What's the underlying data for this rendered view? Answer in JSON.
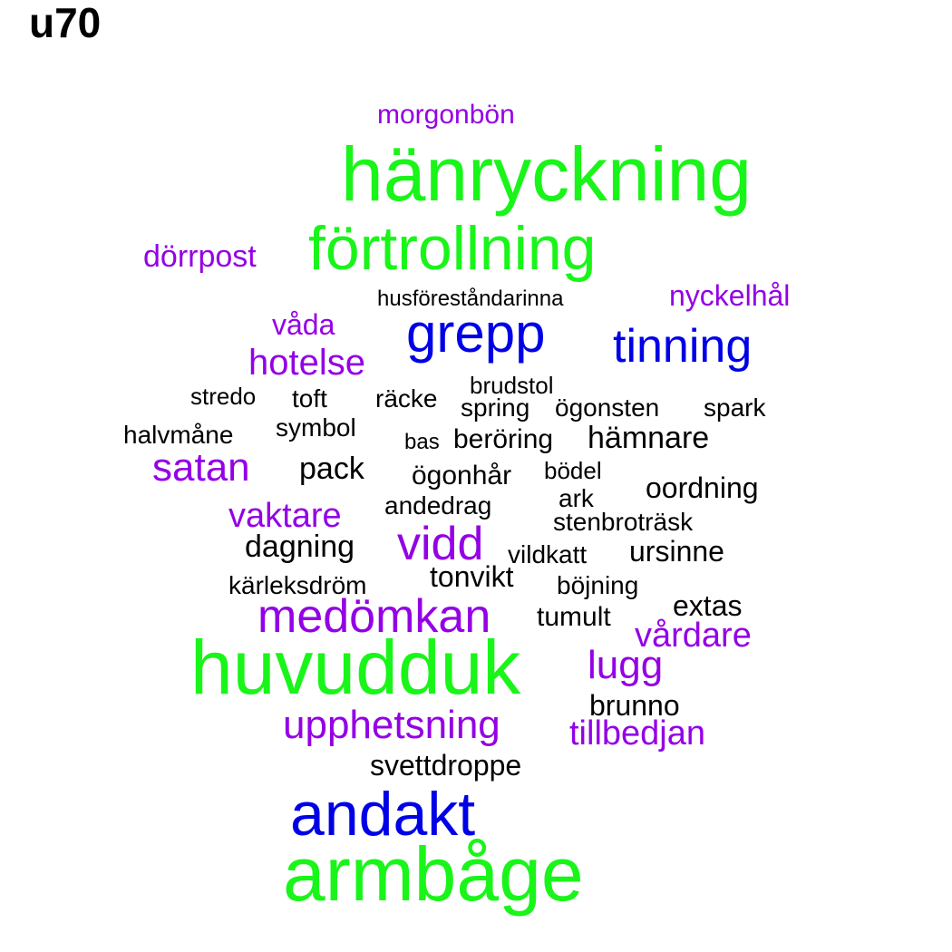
{
  "title": "u70",
  "colors": {
    "green": "#19f519",
    "blue": "#0000e6",
    "purple": "#9400e6",
    "black": "#000000"
  },
  "words": [
    {
      "text": "morgonbön",
      "color": "purple"
    },
    {
      "text": "hänryckning",
      "color": "green"
    },
    {
      "text": "förtrollning",
      "color": "green"
    },
    {
      "text": "dörrpost",
      "color": "purple"
    },
    {
      "text": "husföreståndarinna",
      "color": "black"
    },
    {
      "text": "nyckelhål",
      "color": "purple"
    },
    {
      "text": "grepp",
      "color": "blue"
    },
    {
      "text": "våda",
      "color": "purple"
    },
    {
      "text": "tinning",
      "color": "blue"
    },
    {
      "text": "hotelse",
      "color": "purple"
    },
    {
      "text": "brudstol",
      "color": "black"
    },
    {
      "text": "stredo",
      "color": "black"
    },
    {
      "text": "toft",
      "color": "black"
    },
    {
      "text": "räcke",
      "color": "black"
    },
    {
      "text": "spring",
      "color": "black"
    },
    {
      "text": "ögonsten",
      "color": "black"
    },
    {
      "text": "spark",
      "color": "black"
    },
    {
      "text": "halvmåne",
      "color": "black"
    },
    {
      "text": "symbol",
      "color": "black"
    },
    {
      "text": "bas",
      "color": "black"
    },
    {
      "text": "beröring",
      "color": "black"
    },
    {
      "text": "hämnare",
      "color": "black"
    },
    {
      "text": "satan",
      "color": "purple"
    },
    {
      "text": "pack",
      "color": "black"
    },
    {
      "text": "ögonhår",
      "color": "black"
    },
    {
      "text": "bödel",
      "color": "black"
    },
    {
      "text": "oordning",
      "color": "black"
    },
    {
      "text": "ark",
      "color": "black"
    },
    {
      "text": "andedrag",
      "color": "black"
    },
    {
      "text": "vaktare",
      "color": "purple"
    },
    {
      "text": "stenbroträsk",
      "color": "black"
    },
    {
      "text": "dagning",
      "color": "black"
    },
    {
      "text": "vidd",
      "color": "purple"
    },
    {
      "text": "vildkatt",
      "color": "black"
    },
    {
      "text": "ursinne",
      "color": "black"
    },
    {
      "text": "tonvikt",
      "color": "black"
    },
    {
      "text": "kärleksdröm",
      "color": "black"
    },
    {
      "text": "böjning",
      "color": "black"
    },
    {
      "text": "extas",
      "color": "black"
    },
    {
      "text": "medömkan",
      "color": "purple"
    },
    {
      "text": "tumult",
      "color": "black"
    },
    {
      "text": "vårdare",
      "color": "purple"
    },
    {
      "text": "huvudduk",
      "color": "green"
    },
    {
      "text": "lugg",
      "color": "purple"
    },
    {
      "text": "brunno",
      "color": "black"
    },
    {
      "text": "upphetsning",
      "color": "purple"
    },
    {
      "text": "tillbedjan",
      "color": "purple"
    },
    {
      "text": "svettdroppe",
      "color": "black"
    },
    {
      "text": "andakt",
      "color": "blue"
    },
    {
      "text": "armbåge",
      "color": "green"
    }
  ]
}
